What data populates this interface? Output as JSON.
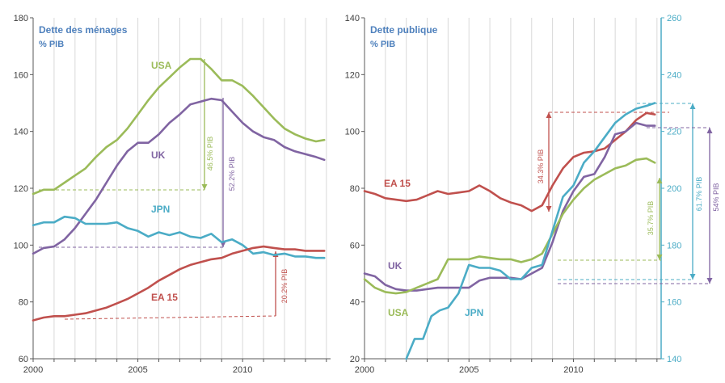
{
  "colors": {
    "usa": "#9bbb59",
    "uk": "#8064a2",
    "jpn": "#4bacc6",
    "ea15": "#c0504d",
    "title": "#4f81bd",
    "grid": "#d9d9d9",
    "axis": "#595959"
  },
  "chart_data": [
    {
      "type": "line",
      "title": "Dette des ménages",
      "subtitle": "% PIB",
      "x_ticks": [
        2000,
        2005,
        2010
      ],
      "xlim": [
        2000,
        2014.2
      ],
      "ylim": [
        60,
        180
      ],
      "y_ticks": [
        60,
        80,
        100,
        120,
        140,
        160,
        180
      ],
      "grid": "vertical",
      "series": [
        {
          "name": "USA",
          "color_key": "usa",
          "x": [
            2000,
            2000.5,
            2001,
            2001.5,
            2002,
            2002.5,
            2003,
            2003.5,
            2004,
            2004.5,
            2005,
            2005.5,
            2006,
            2006.5,
            2007,
            2007.5,
            2008,
            2008.5,
            2009,
            2009.5,
            2010,
            2010.5,
            2011,
            2011.5,
            2012,
            2012.5,
            2013,
            2013.5,
            2013.9
          ],
          "y": [
            118,
            119.5,
            119.5,
            122,
            124.5,
            127,
            131,
            134.5,
            137,
            141,
            146,
            151,
            155.5,
            159,
            162.5,
            165.5,
            165.5,
            162,
            158,
            158,
            156,
            152.5,
            148.5,
            144.5,
            141,
            139,
            137.5,
            136.5,
            137
          ]
        },
        {
          "name": "UK",
          "color_key": "uk",
          "x": [
            2000,
            2000.5,
            2001,
            2001.5,
            2002,
            2002.5,
            2003,
            2003.5,
            2004,
            2004.5,
            2005,
            2005.5,
            2006,
            2006.5,
            2007,
            2007.5,
            2008,
            2008.5,
            2009,
            2009.5,
            2010,
            2010.5,
            2011,
            2011.5,
            2012,
            2012.5,
            2013,
            2013.5,
            2013.9
          ],
          "y": [
            97,
            99,
            99.5,
            102,
            106,
            111,
            116,
            122,
            128,
            133,
            136,
            136,
            139,
            143,
            146,
            149.5,
            150.5,
            151.5,
            151,
            147,
            143,
            140,
            138,
            137,
            134.5,
            133,
            132,
            131,
            130
          ]
        },
        {
          "name": "JPN",
          "color_key": "jpn",
          "x": [
            2000,
            2000.5,
            2001,
            2001.5,
            2002,
            2002.5,
            2003,
            2003.5,
            2004,
            2004.5,
            2005,
            2005.5,
            2006,
            2006.5,
            2007,
            2007.5,
            2008,
            2008.5,
            2009,
            2009.5,
            2010,
            2010.5,
            2011,
            2011.5,
            2012,
            2012.5,
            2013,
            2013.5,
            2013.9
          ],
          "y": [
            107,
            108,
            108,
            110,
            109.5,
            107.5,
            107.5,
            107.5,
            108,
            106,
            105,
            103,
            104.5,
            103.5,
            104.5,
            103,
            102.5,
            104,
            101,
            102,
            100,
            97,
            97.5,
            96.5,
            97,
            96,
            96,
            95.5,
            95.5
          ]
        },
        {
          "name": "EA 15",
          "color_key": "ea15",
          "x": [
            2000,
            2000.5,
            2001,
            2001.5,
            2002,
            2002.5,
            2003,
            2003.5,
            2004,
            2004.5,
            2005,
            2005.5,
            2006,
            2006.5,
            2007,
            2007.5,
            2008,
            2008.5,
            2009,
            2009.5,
            2010,
            2010.5,
            2011,
            2011.5,
            2012,
            2012.5,
            2013,
            2013.5,
            2013.9
          ],
          "y": [
            73.5,
            74.5,
            75,
            75,
            75.5,
            76,
            77,
            78,
            79.5,
            81,
            83,
            85,
            87.5,
            89.5,
            91.5,
            93,
            94,
            95,
            95.5,
            97,
            98,
            99,
            99.5,
            99,
            98.5,
            98.5,
            98,
            98,
            98
          ]
        }
      ],
      "annotations": [
        "46.5% PIB",
        "52.2% PIB",
        "20.2% PIB"
      ]
    },
    {
      "type": "line",
      "title": "Dette publique",
      "subtitle": "% PIB",
      "x_ticks": [
        2000,
        2005,
        2010
      ],
      "xlim": [
        2000,
        2014.2
      ],
      "ylim": [
        20,
        140
      ],
      "y_ticks": [
        20,
        40,
        60,
        80,
        100,
        120,
        140
      ],
      "ylim_right": [
        140,
        260
      ],
      "y_ticks_right": [
        140,
        160,
        180,
        200,
        220,
        240,
        260
      ],
      "grid": "vertical",
      "series": [
        {
          "name": "EA 15",
          "color_key": "ea15",
          "axis": "left",
          "x": [
            2000,
            2000.5,
            2001,
            2001.5,
            2002,
            2002.5,
            2003,
            2003.5,
            2004,
            2004.5,
            2005,
            2005.5,
            2006,
            2006.5,
            2007,
            2007.5,
            2008,
            2008.5,
            2009,
            2009.5,
            2010,
            2010.5,
            2011,
            2011.5,
            2012,
            2012.5,
            2013,
            2013.5,
            2013.9
          ],
          "y": [
            79,
            78,
            76.5,
            76,
            75.5,
            76,
            77.5,
            79,
            78,
            78.5,
            79,
            81,
            79,
            76.5,
            75,
            74,
            72,
            74,
            81,
            87,
            91,
            92.5,
            93,
            94,
            97,
            100,
            104,
            106.5,
            106
          ]
        },
        {
          "name": "UK",
          "color_key": "uk",
          "axis": "left",
          "x": [
            2000,
            2000.5,
            2001,
            2001.5,
            2002,
            2002.5,
            2003,
            2003.5,
            2004,
            2004.5,
            2005,
            2005.5,
            2006,
            2006.5,
            2007,
            2007.5,
            2008,
            2008.5,
            2009,
            2009.5,
            2010,
            2010.5,
            2011,
            2011.5,
            2012,
            2012.5,
            2013,
            2013.5,
            2013.9
          ],
          "y": [
            50,
            49,
            46,
            44.5,
            44,
            44,
            44.5,
            45,
            45,
            45,
            45,
            47.5,
            48.5,
            48.5,
            48.5,
            48,
            50,
            52,
            61,
            72,
            79,
            84,
            85,
            91,
            99,
            100,
            103,
            102,
            102
          ]
        },
        {
          "name": "USA",
          "color_key": "usa",
          "axis": "left",
          "x": [
            2000,
            2000.5,
            2001,
            2001.5,
            2002,
            2002.5,
            2003,
            2003.5,
            2004,
            2004.5,
            2005,
            2005.5,
            2006,
            2006.5,
            2007,
            2007.5,
            2008,
            2008.5,
            2009,
            2009.5,
            2010,
            2010.5,
            2011,
            2011.5,
            2012,
            2012.5,
            2013,
            2013.5,
            2013.9
          ],
          "y": [
            48,
            45,
            43.5,
            43,
            43.5,
            45,
            46.5,
            48,
            55,
            55,
            55,
            56,
            55.5,
            55,
            55,
            54,
            55,
            57,
            64,
            71,
            76,
            80,
            83,
            85,
            87,
            88,
            90,
            90.5,
            89
          ]
        },
        {
          "name": "JPN",
          "color_key": "jpn",
          "axis": "right",
          "x": [
            2002,
            2002.4,
            2002.8,
            2003.2,
            2003.6,
            2004,
            2004.5,
            2005,
            2005.5,
            2006,
            2006.5,
            2007,
            2007.5,
            2008,
            2008.5,
            2009,
            2009.5,
            2010,
            2010.5,
            2011,
            2011.5,
            2012,
            2012.5,
            2013,
            2013.5,
            2013.9
          ],
          "y": [
            140,
            147,
            147,
            155,
            157,
            158,
            163,
            173,
            172,
            172,
            171,
            168,
            168,
            172,
            173,
            185,
            197,
            201,
            209,
            213,
            218,
            223,
            226,
            228,
            229,
            230
          ]
        }
      ],
      "annotations": [
        "34.3% PIB",
        "35.7% PIB",
        "61.7% PIB",
        "54% PIB"
      ]
    }
  ],
  "labels": {
    "left": {
      "title": "Dette des ménages",
      "subtitle": "% PIB",
      "usa": "USA",
      "uk": "UK",
      "jpn": "JPN",
      "ea15": "EA 15",
      "ann_usa": "46.5% PIB",
      "ann_uk": "52.2% PIB",
      "ann_ea15": "20.2% PIB",
      "y_ticks": [
        "60",
        "80",
        "100",
        "120",
        "140",
        "160",
        "180"
      ],
      "x_ticks": [
        "2000",
        "2005",
        "2010"
      ]
    },
    "right": {
      "title": "Dette publique",
      "subtitle": "% PIB",
      "ea15": "EA 15",
      "uk": "UK",
      "usa": "USA",
      "jpn": "JPN",
      "ann_ea15": "34.3% PIB",
      "ann_usa": "35.7% PIB",
      "ann_jpn": "61.7% PIB",
      "ann_uk": "54% PIB",
      "y_ticks": [
        "20",
        "40",
        "60",
        "80",
        "100",
        "120",
        "140"
      ],
      "y_ticks_right": [
        "140",
        "160",
        "180",
        "200",
        "220",
        "240",
        "260"
      ],
      "x_ticks": [
        "2000",
        "2005",
        "2010"
      ]
    }
  }
}
